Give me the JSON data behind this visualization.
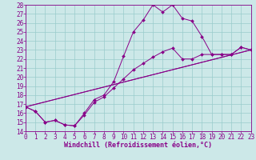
{
  "xlabel": "Windchill (Refroidissement éolien,°C)",
  "xlim": [
    0,
    23
  ],
  "ylim": [
    14,
    28
  ],
  "xticks": [
    0,
    1,
    2,
    3,
    4,
    5,
    6,
    7,
    8,
    9,
    10,
    11,
    12,
    13,
    14,
    15,
    16,
    17,
    18,
    19,
    20,
    21,
    22,
    23
  ],
  "yticks": [
    14,
    15,
    16,
    17,
    18,
    19,
    20,
    21,
    22,
    23,
    24,
    25,
    26,
    27,
    28
  ],
  "bg_color": "#cce8e8",
  "grid_color": "#99cccc",
  "line_color": "#880088",
  "line1_x": [
    0,
    1,
    2,
    3,
    4,
    5,
    6,
    7,
    8,
    9,
    10,
    11,
    12,
    13,
    14,
    15,
    16,
    17,
    18,
    19,
    20,
    21,
    22,
    23
  ],
  "line1_y": [
    16.7,
    16.2,
    15.0,
    15.2,
    14.7,
    14.6,
    16.0,
    17.5,
    18.0,
    19.5,
    22.3,
    25.0,
    26.3,
    28.0,
    27.2,
    28.0,
    26.5,
    26.2,
    24.5,
    22.5,
    22.5,
    22.5,
    23.3,
    23.0
  ],
  "line2_x": [
    0,
    1,
    2,
    3,
    4,
    5,
    6,
    7,
    8,
    9,
    10,
    11,
    12,
    13,
    14,
    15,
    16,
    17,
    18,
    19,
    20,
    21,
    22,
    23
  ],
  "line2_y": [
    16.7,
    16.2,
    15.0,
    15.2,
    14.7,
    14.6,
    15.8,
    17.2,
    17.8,
    18.8,
    19.8,
    20.8,
    21.5,
    22.2,
    22.8,
    23.2,
    22.0,
    22.0,
    22.5,
    22.5,
    22.5,
    22.5,
    23.3,
    23.0
  ],
  "line3_x": [
    0,
    23
  ],
  "line3_y": [
    16.7,
    23.0
  ],
  "line4_x": [
    0,
    23
  ],
  "line4_y": [
    16.7,
    23.0
  ],
  "font_size_xlabel": 6,
  "font_size_ytick": 5.5,
  "font_size_xtick": 5.5,
  "marker_size": 2.0,
  "line_width": 0.7
}
